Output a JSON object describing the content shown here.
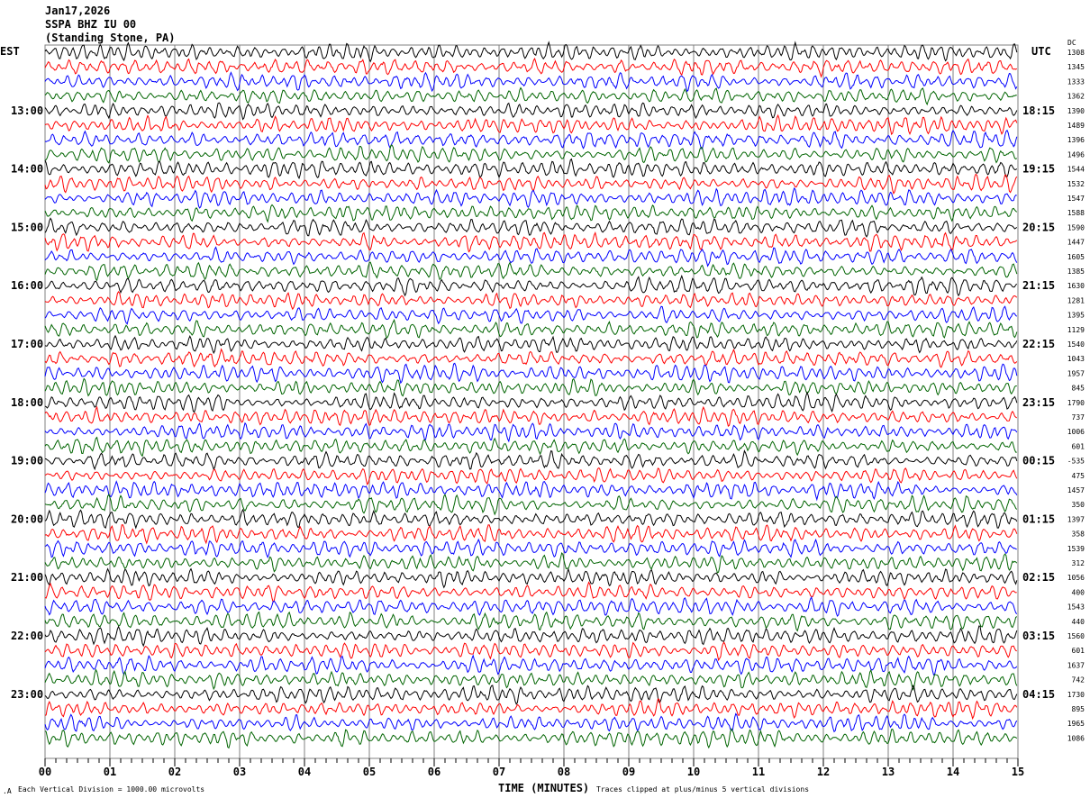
{
  "header": {
    "date": "Jan17,2026",
    "station": "SSPA BHZ IU 00",
    "location": "(Standing Stone, PA)",
    "left_zone": "EST",
    "right_zone": "UTC",
    "dc_label": "DC"
  },
  "footer": {
    "scale_note": "Each Vertical Division = 1000.00 microvolts",
    "xlabel": "TIME (MINUTES)",
    "clip_note": "Traces clipped at plus/minus 5 vertical divisions"
  },
  "chart_data": {
    "type": "line",
    "title": "SSPA BHZ IU 00",
    "xlabel": "TIME (MINUTES)",
    "xlim": [
      0,
      15
    ],
    "x_ticks": [
      "00",
      "01",
      "02",
      "03",
      "04",
      "05",
      "06",
      "07",
      "08",
      "09",
      "10",
      "11",
      "12",
      "13",
      "14",
      "15"
    ],
    "grid": true,
    "trace_colors": [
      "#000000",
      "#ff0000",
      "#0000ff",
      "#006400"
    ],
    "left_labels": [
      {
        "row": 4,
        "text": "13:00"
      },
      {
        "row": 8,
        "text": "14:00"
      },
      {
        "row": 12,
        "text": "15:00"
      },
      {
        "row": 16,
        "text": "16:00"
      },
      {
        "row": 20,
        "text": "17:00"
      },
      {
        "row": 24,
        "text": "18:00"
      },
      {
        "row": 28,
        "text": "19:00"
      },
      {
        "row": 32,
        "text": "20:00"
      },
      {
        "row": 36,
        "text": "21:00"
      },
      {
        "row": 40,
        "text": "22:00"
      },
      {
        "row": 44,
        "text": "23:00"
      }
    ],
    "right_labels": [
      {
        "row": 4,
        "text": "18:15"
      },
      {
        "row": 8,
        "text": "19:15"
      },
      {
        "row": 12,
        "text": "20:15"
      },
      {
        "row": 16,
        "text": "21:15"
      },
      {
        "row": 20,
        "text": "22:15"
      },
      {
        "row": 24,
        "text": "23:15"
      },
      {
        "row": 28,
        "text": "00:15"
      },
      {
        "row": 32,
        "text": "01:15"
      },
      {
        "row": 36,
        "text": "02:15"
      },
      {
        "row": 40,
        "text": "03:15"
      },
      {
        "row": 44,
        "text": "04:15"
      }
    ],
    "dc_offsets": [
      "1308",
      "1345",
      "1333",
      "1362",
      "1390",
      "1489",
      "1396",
      "1496",
      "1544",
      "1532",
      "1547",
      "1588",
      "1590",
      "1447",
      "1605",
      "1385",
      "1630",
      "1281",
      "1395",
      "1129",
      "1540",
      "1043",
      "1957",
      "845",
      "1790",
      "737",
      "1006",
      "601",
      "-535",
      "475",
      "1457",
      "350",
      "1397",
      "358",
      "1539",
      "312",
      "1056",
      "400",
      "1543",
      "440",
      "1560",
      "601",
      "1637",
      "742",
      "1730",
      "895",
      "1965",
      "1086"
    ]
  }
}
